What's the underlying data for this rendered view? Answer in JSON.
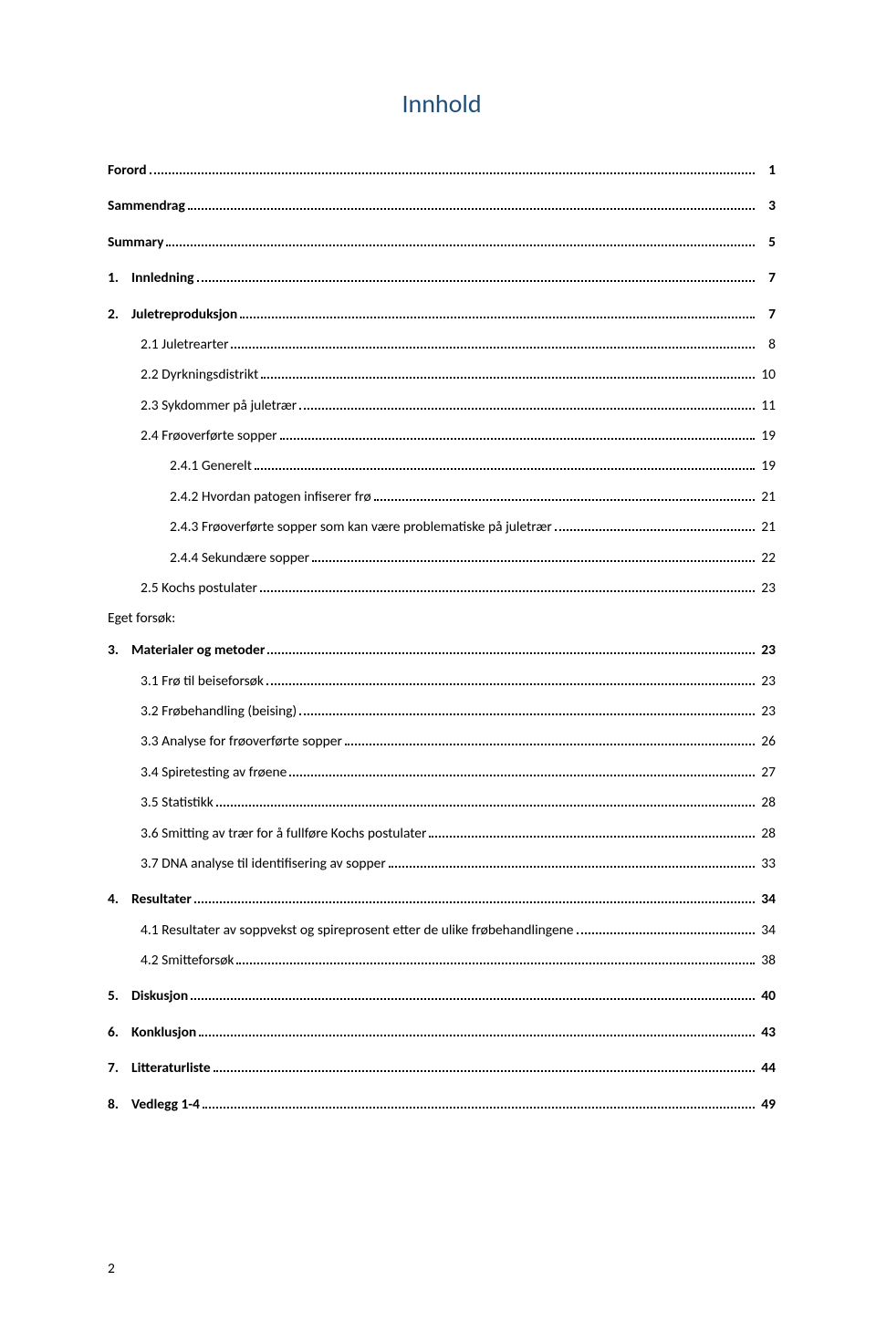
{
  "title": "Innhold",
  "group_label": "Eget forsøk:",
  "footer_page": "2",
  "colors": {
    "title": "#1f4e79",
    "text": "#000000",
    "background": "#ffffff",
    "leader": "#000000"
  },
  "toc": [
    {
      "indent": 0,
      "bold": true,
      "num": "",
      "label": "Forord",
      "page": "1",
      "spacer_after": true
    },
    {
      "indent": 0,
      "bold": true,
      "num": "",
      "label": "Sammendrag",
      "page": "3",
      "spacer_after": true
    },
    {
      "indent": 0,
      "bold": true,
      "num": "",
      "label": "Summary",
      "page": "5",
      "spacer_after": true
    },
    {
      "indent": 0,
      "bold": true,
      "num": "1.",
      "label": "Innledning",
      "page": "7",
      "spacer_after": true
    },
    {
      "indent": 0,
      "bold": true,
      "num": "2.",
      "label": "Juletreproduksjon",
      "page": "7"
    },
    {
      "indent": 1,
      "bold": false,
      "num": "",
      "label": "2.1 Juletrearter",
      "page": "8"
    },
    {
      "indent": 1,
      "bold": false,
      "num": "",
      "label": "2.2 Dyrkningsdistrikt",
      "page": "10"
    },
    {
      "indent": 1,
      "bold": false,
      "num": "",
      "label": "2.3 Sykdommer på juletrær",
      "page": "11"
    },
    {
      "indent": 1,
      "bold": false,
      "num": "",
      "label": "2.4 Frøoverførte sopper",
      "page": "19"
    },
    {
      "indent": 2,
      "bold": false,
      "num": "",
      "label": "2.4.1 Generelt",
      "page": "19"
    },
    {
      "indent": 2,
      "bold": false,
      "num": "",
      "label": "2.4.2 Hvordan patogen infiserer frø",
      "page": "21"
    },
    {
      "indent": 2,
      "bold": false,
      "num": "",
      "label": "2.4.3 Frøoverførte sopper som kan være problematiske på juletrær",
      "page": "21"
    },
    {
      "indent": 2,
      "bold": false,
      "num": "",
      "label": "2.4.4 Sekundære sopper",
      "page": "22"
    },
    {
      "indent": 1,
      "bold": false,
      "num": "",
      "label": "2.5 Kochs postulater",
      "page": "23",
      "group_after": true
    },
    {
      "indent": 0,
      "bold": true,
      "num": "3.",
      "label": "Materialer og metoder",
      "page": "23"
    },
    {
      "indent": 1,
      "bold": false,
      "num": "",
      "label": "3.1 Frø til beiseforsøk",
      "page": "23"
    },
    {
      "indent": 1,
      "bold": false,
      "num": "",
      "label": "3.2 Frøbehandling (beising)",
      "page": "23"
    },
    {
      "indent": 1,
      "bold": false,
      "num": "",
      "label": "3.3 Analyse for frøoverførte sopper",
      "page": "26"
    },
    {
      "indent": 1,
      "bold": false,
      "num": "",
      "label": "3.4 Spiretesting av frøene",
      "page": "27"
    },
    {
      "indent": 1,
      "bold": false,
      "num": "",
      "label": "3.5 Statistikk",
      "page": "28"
    },
    {
      "indent": 1,
      "bold": false,
      "num": "",
      "label": "3.6 Smitting av trær for å fullføre Kochs postulater",
      "page": "28"
    },
    {
      "indent": 1,
      "bold": false,
      "num": "",
      "label": "3.7 DNA analyse til identifisering av sopper",
      "page": "33",
      "spacer_after": true
    },
    {
      "indent": 0,
      "bold": true,
      "num": "4.",
      "label": "Resultater",
      "page": "34"
    },
    {
      "indent": 1,
      "bold": false,
      "num": "",
      "label": "4.1 Resultater av soppvekst og spireprosent etter de ulike frøbehandlingene",
      "page": "34"
    },
    {
      "indent": 1,
      "bold": false,
      "num": "",
      "label": "4.2 Smitteforsøk",
      "page": "38",
      "spacer_after": true
    },
    {
      "indent": 0,
      "bold": true,
      "num": "5.",
      "label": "Diskusjon",
      "page": "40",
      "spacer_after": true
    },
    {
      "indent": 0,
      "bold": true,
      "num": "6.",
      "label": "Konklusjon",
      "page": "43",
      "spacer_after": true
    },
    {
      "indent": 0,
      "bold": true,
      "num": "7.",
      "label": "Litteraturliste",
      "page": "44",
      "spacer_after": true
    },
    {
      "indent": 0,
      "bold": true,
      "num": "8.",
      "label": "Vedlegg 1-4",
      "page": "49"
    }
  ]
}
